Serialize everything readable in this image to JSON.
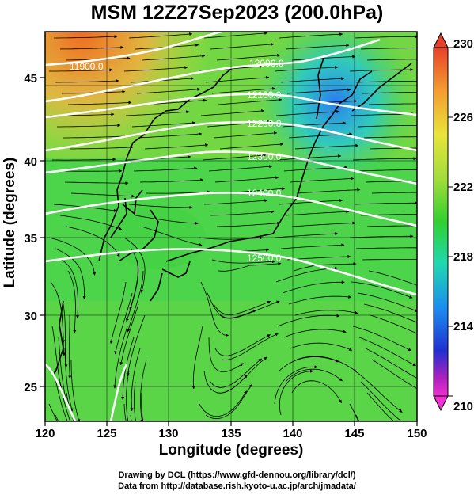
{
  "title": "MSM 12Z27Sep2023 (200.0hPa)",
  "x_axis": {
    "label": "Longitude (degrees)",
    "ticks": [
      "120",
      "125",
      "130",
      "135",
      "140",
      "145",
      "150"
    ],
    "range": [
      120,
      150
    ]
  },
  "y_axis": {
    "label": "Latitude  (degrees)",
    "ticks": [
      "25",
      "30",
      "35",
      "40",
      "45"
    ],
    "range": [
      22.4,
      47.6
    ]
  },
  "contours": [
    {
      "value": "11900.0",
      "label": "11900.0"
    },
    {
      "value": "12000.0",
      "label": "12000.0"
    },
    {
      "value": "12100.0",
      "label": "12100.0"
    },
    {
      "value": "12200.0",
      "label": "12200.0"
    },
    {
      "value": "12300.0",
      "label": "12300.0"
    },
    {
      "value": "12400.0",
      "label": "12400.0"
    },
    {
      "value": "12500.0",
      "label": "12500.0"
    }
  ],
  "colorbar": {
    "ticks": [
      "230",
      "226",
      "222",
      "218",
      "214",
      "210"
    ],
    "colors": [
      "#e8402a",
      "#f49a30",
      "#e9e43a",
      "#9fdc3c",
      "#30d030",
      "#20d8b0",
      "#1a8cf0",
      "#2030d0",
      "#b020c0",
      "#f030d0"
    ]
  },
  "credits": [
    "Drawing by DCL (https://www.gfd-dennou.org/library/dcl/)",
    "Data from http://database.rish.kyoto-u.ac.jp/arch/jmadata/"
  ]
}
